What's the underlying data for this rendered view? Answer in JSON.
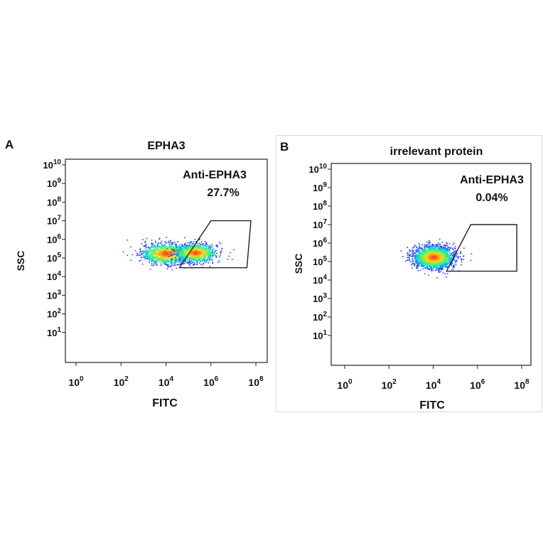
{
  "chart_data": [
    {
      "type": "scatter",
      "panel_letter": "A",
      "title": "EPHA3",
      "xlabel": "FITC",
      "ylabel": "SSC",
      "x_scale": "log",
      "y_scale": "log",
      "xlim": [
        1,
        100000000
      ],
      "ylim": [
        1,
        10000000000
      ],
      "x_ticks": [
        {
          "base": "10",
          "exp": "0",
          "value": 1
        },
        {
          "base": "10",
          "exp": "2",
          "value": 100
        },
        {
          "base": "10",
          "exp": "4",
          "value": 10000
        },
        {
          "base": "10",
          "exp": "6",
          "value": 1000000
        },
        {
          "base": "10",
          "exp": "8",
          "value": 100000000
        }
      ],
      "y_ticks": [
        {
          "base": "10",
          "exp": "1",
          "value": 10
        },
        {
          "base": "10",
          "exp": "2",
          "value": 100
        },
        {
          "base": "10",
          "exp": "3",
          "value": 1000
        },
        {
          "base": "10",
          "exp": "4",
          "value": 10000
        },
        {
          "base": "10",
          "exp": "5",
          "value": 100000
        },
        {
          "base": "10",
          "exp": "6",
          "value": 1000000
        },
        {
          "base": "10",
          "exp": "7",
          "value": 10000000
        },
        {
          "base": "10",
          "exp": "8",
          "value": 100000000
        },
        {
          "base": "10",
          "exp": "9",
          "value": 1000000000
        },
        {
          "base": "10",
          "exp": "10",
          "value": 10000000000
        }
      ],
      "gate": {
        "label": "Anti-EPHA3",
        "percent": "27.7%",
        "polygon": [
          [
            1000000,
            10000000
          ],
          [
            60000000,
            10000000
          ],
          [
            40000000,
            30000
          ],
          [
            40000,
            30000
          ]
        ]
      },
      "populations": [
        {
          "x": 10000,
          "y": 180000,
          "spread_x": 0.55,
          "spread_y": 0.28,
          "weight": 0.55
        },
        {
          "x": 200000,
          "y": 200000,
          "spread_x": 0.45,
          "spread_y": 0.25,
          "weight": 0.45
        }
      ],
      "colors": {
        "low": "#1a3cff",
        "mid": "#33ff66",
        "high": "#ff2b1a",
        "gate": "#222222"
      }
    },
    {
      "type": "scatter",
      "panel_letter": "B",
      "title": "irrelevant protein",
      "xlabel": "FITC",
      "ylabel": "SSC",
      "x_scale": "log",
      "y_scale": "log",
      "xlim": [
        1,
        100000000
      ],
      "ylim": [
        1,
        10000000000
      ],
      "x_ticks": [
        {
          "base": "10",
          "exp": "0",
          "value": 1
        },
        {
          "base": "10",
          "exp": "2",
          "value": 100
        },
        {
          "base": "10",
          "exp": "4",
          "value": 10000
        },
        {
          "base": "10",
          "exp": "6",
          "value": 1000000
        },
        {
          "base": "10",
          "exp": "8",
          "value": 100000000
        }
      ],
      "y_ticks": [
        {
          "base": "10",
          "exp": "1",
          "value": 10
        },
        {
          "base": "10",
          "exp": "2",
          "value": 100
        },
        {
          "base": "10",
          "exp": "3",
          "value": 1000
        },
        {
          "base": "10",
          "exp": "4",
          "value": 10000
        },
        {
          "base": "10",
          "exp": "5",
          "value": 100000
        },
        {
          "base": "10",
          "exp": "6",
          "value": 1000000
        },
        {
          "base": "10",
          "exp": "7",
          "value": 10000000
        },
        {
          "base": "10",
          "exp": "8",
          "value": 100000000
        },
        {
          "base": "10",
          "exp": "9",
          "value": 1000000000
        },
        {
          "base": "10",
          "exp": "10",
          "value": 10000000000
        }
      ],
      "gate": {
        "label": "Anti-EPHA3",
        "percent": "0.04%",
        "polygon": [
          [
            500000,
            10000000
          ],
          [
            60000000,
            10000000
          ],
          [
            60000000,
            30000
          ],
          [
            40000,
            30000
          ]
        ]
      },
      "populations": [
        {
          "x": 10000,
          "y": 180000,
          "spread_x": 0.45,
          "spread_y": 0.3,
          "weight": 1.0
        }
      ],
      "colors": {
        "low": "#1a3cff",
        "mid": "#33ff66",
        "high": "#ff2b1a",
        "gate": "#222222"
      }
    }
  ]
}
